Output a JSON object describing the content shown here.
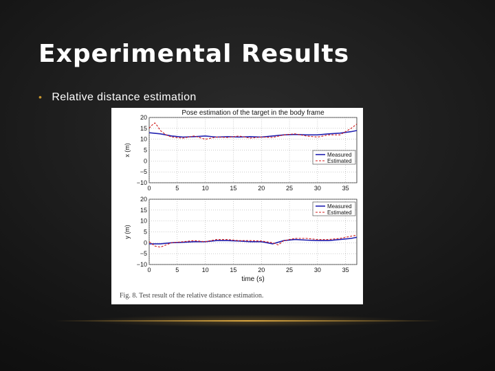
{
  "slide": {
    "title": "Experimental Results",
    "bullet": "Relative distance estimation"
  },
  "figure": {
    "caption": "Fig. 8.   Test result of the relative distance estimation."
  },
  "colors": {
    "measured": "#1f1fb0",
    "estimated": "#d01818",
    "accent": "#d9a640"
  },
  "chart_data": [
    {
      "type": "line",
      "title": "Pose estimation of the target in the body frame",
      "xlabel": "",
      "ylabel": "x (m)",
      "xlim": [
        0,
        37
      ],
      "ylim": [
        -10,
        20
      ],
      "xticks": [
        0,
        5,
        10,
        15,
        20,
        25,
        30,
        35
      ],
      "yticks": [
        -10,
        -5,
        0,
        5,
        10,
        15,
        20
      ],
      "grid": true,
      "legend_position": "right",
      "series": [
        {
          "name": "Measured",
          "style": "solid",
          "x": [
            0,
            2,
            4,
            6,
            8,
            10,
            12,
            14,
            16,
            18,
            20,
            22,
            24,
            26,
            28,
            30,
            32,
            34,
            36,
            37
          ],
          "y": [
            13,
            12.5,
            11.5,
            11,
            11.2,
            11.5,
            11,
            11.2,
            11,
            11.2,
            11,
            11.5,
            12,
            12.2,
            12,
            12,
            12.5,
            12.8,
            13.5,
            14
          ]
        },
        {
          "name": "Estimated",
          "style": "dashed",
          "x": [
            0,
            0.5,
            1,
            1.5,
            2,
            3,
            4,
            6,
            8,
            10,
            12,
            14,
            16,
            18,
            20,
            22,
            24,
            26,
            28,
            30,
            32,
            34,
            35,
            36,
            37
          ],
          "y": [
            15,
            16.5,
            17.5,
            16,
            14,
            12,
            11,
            10.5,
            11.5,
            10,
            11,
            10.8,
            11.5,
            10.5,
            11,
            10.8,
            12,
            12.5,
            11.5,
            11,
            12,
            12,
            13.5,
            15,
            17
          ]
        }
      ]
    },
    {
      "type": "line",
      "title": "",
      "xlabel": "time (s)",
      "ylabel": "y (m)",
      "xlim": [
        0,
        37
      ],
      "ylim": [
        -10,
        20
      ],
      "xticks": [
        0,
        5,
        10,
        15,
        20,
        25,
        30,
        35
      ],
      "yticks": [
        -10,
        -5,
        0,
        5,
        10,
        15,
        20
      ],
      "grid": true,
      "legend_position": "top-right",
      "series": [
        {
          "name": "Measured",
          "style": "solid",
          "x": [
            0,
            2,
            4,
            6,
            8,
            10,
            12,
            14,
            16,
            18,
            20,
            22,
            24,
            26,
            28,
            30,
            32,
            34,
            36,
            37
          ],
          "y": [
            -0.5,
            -0.5,
            0,
            0.2,
            0.5,
            0.5,
            1,
            1,
            0.8,
            0.5,
            0.5,
            -0.5,
            1,
            1.5,
            1.2,
            1,
            1,
            1.5,
            2,
            2.5
          ]
        },
        {
          "name": "Estimated",
          "style": "dashed",
          "x": [
            0,
            1,
            2,
            3,
            4,
            6,
            8,
            10,
            12,
            14,
            16,
            18,
            20,
            22,
            23,
            24,
            26,
            28,
            30,
            32,
            34,
            36,
            37
          ],
          "y": [
            0.5,
            -1.5,
            -2,
            -1,
            0,
            0.5,
            1,
            0.5,
            1.5,
            1.5,
            1,
            1,
            0.8,
            0,
            -1,
            1,
            2,
            2,
            1.5,
            1.5,
            2,
            3,
            3.5
          ]
        }
      ]
    }
  ]
}
